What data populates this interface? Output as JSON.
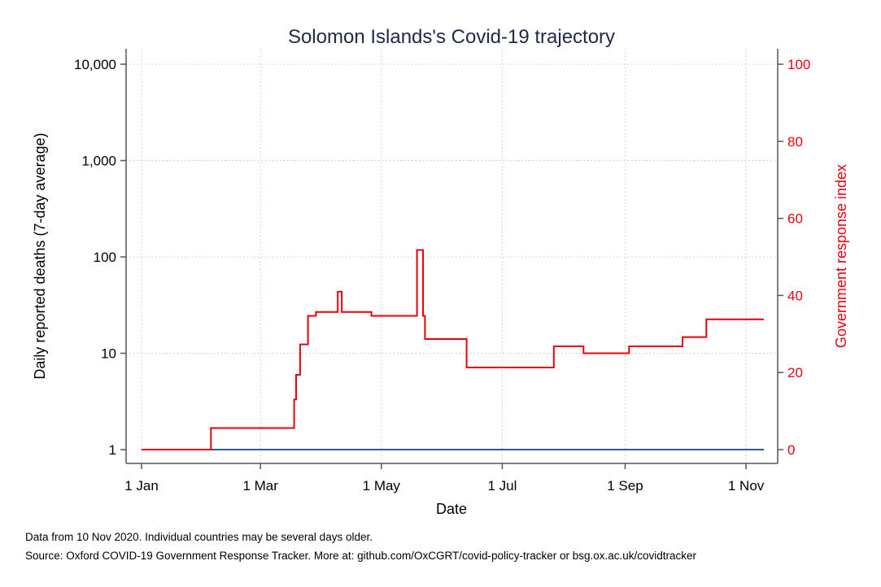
{
  "chart_data": {
    "type": "line",
    "title": "Solomon Islands's Covid-19 trajectory",
    "xlabel": "Date",
    "ylabel_left": "Daily reported deaths (7-day average)",
    "ylabel_right": "Government response index",
    "x_ticks": [
      "1 Jan",
      "1 Mar",
      "1 May",
      "1 Jul",
      "1 Sep",
      "1 Nov"
    ],
    "x_tick_dates": [
      "2020-01-01",
      "2020-03-01",
      "2020-05-01",
      "2020-07-01",
      "2020-09-01",
      "2020-11-01"
    ],
    "xlim": [
      "2020-01-01",
      "2020-11-10"
    ],
    "y_left_scale": "log",
    "y_left_ticks": [
      "1",
      "10",
      "100",
      "1,000",
      "10,000"
    ],
    "y_left_tick_values": [
      1,
      10,
      100,
      1000,
      10000
    ],
    "y_left_lim": [
      1,
      10000
    ],
    "y_right_ticks": [
      "0",
      "20",
      "40",
      "60",
      "80",
      "100"
    ],
    "y_right_tick_values": [
      0,
      20,
      40,
      60,
      80,
      100
    ],
    "y_right_lim": [
      0,
      100
    ],
    "grid": true,
    "series": [
      {
        "axis": "left",
        "color": "#2c5f8f",
        "points": [
          {
            "x": "2020-01-01",
            "y": 1
          },
          {
            "x": "2020-11-10",
            "y": 1
          }
        ]
      },
      {
        "axis": "right",
        "color": "#e8000b",
        "step": true,
        "points": [
          {
            "x": "2020-01-01",
            "y": 0
          },
          {
            "x": "2020-02-05",
            "y": 5.6
          },
          {
            "x": "2020-03-18",
            "y": 13.0
          },
          {
            "x": "2020-03-19",
            "y": 19.4
          },
          {
            "x": "2020-03-21",
            "y": 27.3
          },
          {
            "x": "2020-03-25",
            "y": 34.7
          },
          {
            "x": "2020-03-29",
            "y": 35.7
          },
          {
            "x": "2020-04-09",
            "y": 41.0
          },
          {
            "x": "2020-04-11",
            "y": 35.7
          },
          {
            "x": "2020-04-26",
            "y": 34.7
          },
          {
            "x": "2020-05-19",
            "y": 51.8
          },
          {
            "x": "2020-05-22",
            "y": 34.7
          },
          {
            "x": "2020-05-23",
            "y": 28.7
          },
          {
            "x": "2020-06-13",
            "y": 21.3
          },
          {
            "x": "2020-07-27",
            "y": 26.8
          },
          {
            "x": "2020-08-11",
            "y": 25.0
          },
          {
            "x": "2020-09-03",
            "y": 26.8
          },
          {
            "x": "2020-09-30",
            "y": 29.2
          },
          {
            "x": "2020-10-12",
            "y": 33.8
          },
          {
            "x": "2020-11-10",
            "y": 33.8
          }
        ]
      }
    ]
  },
  "notes": {
    "line1": "Data from 10 Nov 2020. Individual countries may be several days older.",
    "line2": "Source: Oxford COVID-19 Government Response Tracker. More at: github.com/OxCGRT/covid-policy-tracker or bsg.ox.ac.uk/covidtracker"
  }
}
